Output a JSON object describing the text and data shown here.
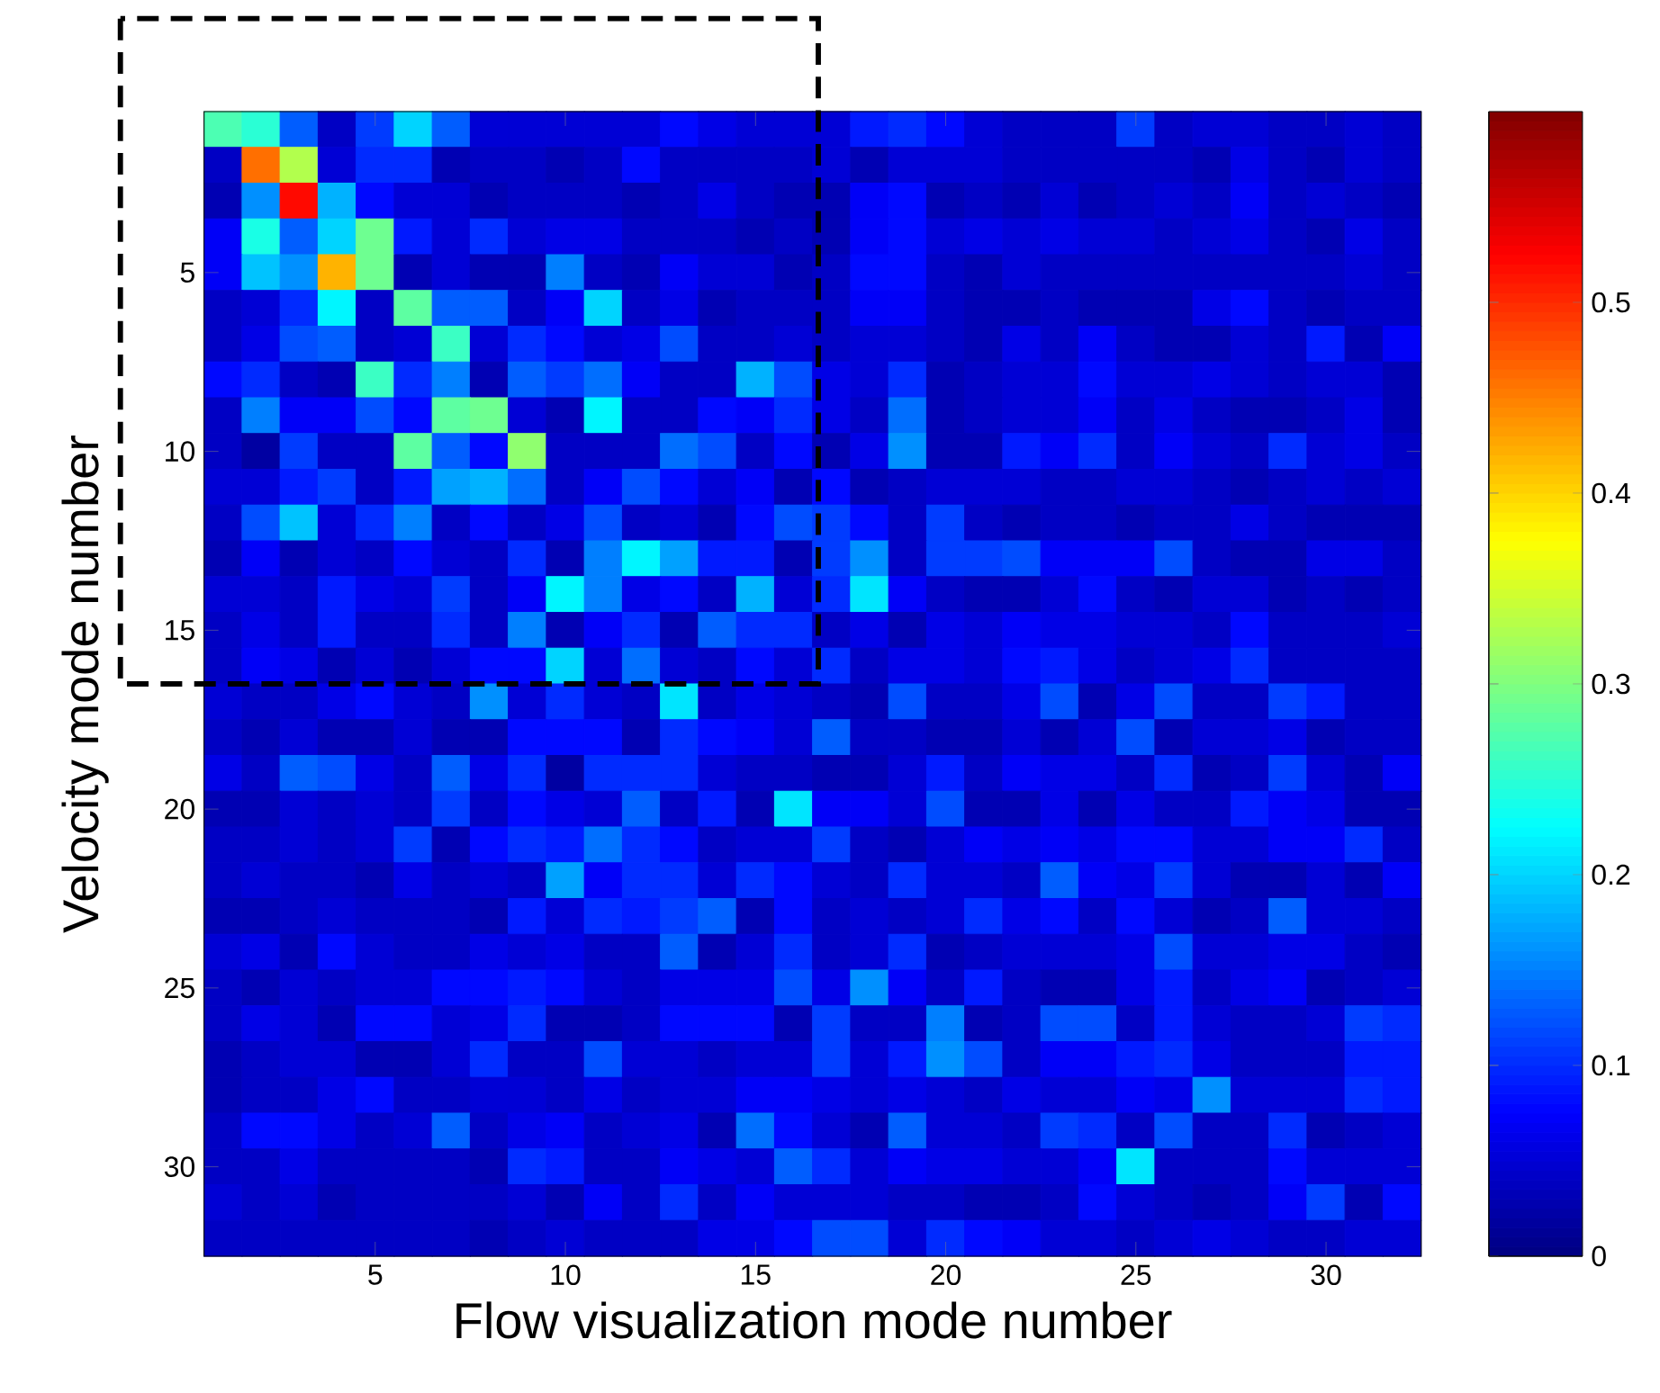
{
  "chart_data": {
    "type": "heatmap",
    "xlabel": "Flow visualization mode number",
    "ylabel": "Velocity mode number",
    "categories": [
      null,
      null,
      null,
      null,
      "5",
      null,
      null,
      null,
      null,
      "10",
      null,
      null,
      null,
      null,
      "15",
      null,
      null,
      null,
      null,
      "20",
      null,
      null,
      null,
      null,
      "25",
      null,
      null,
      null,
      null,
      "30",
      null,
      null
    ],
    "y_categories": [
      null,
      null,
      null,
      null,
      "5",
      null,
      null,
      null,
      null,
      "10",
      null,
      null,
      null,
      null,
      "15",
      null,
      null,
      null,
      null,
      "20",
      null,
      null,
      null,
      null,
      "25",
      null,
      null,
      null,
      null,
      "30",
      null,
      null
    ],
    "clim": [
      0,
      0.6
    ],
    "cticks": [
      0,
      0.1,
      0.2,
      0.3,
      0.4,
      0.5
    ],
    "cells": [
      [
        0.27,
        0.25,
        0.13,
        0.04,
        0.11,
        0.2,
        0.13,
        0.05,
        0.05,
        0.05,
        0.05,
        0.05,
        0.08,
        0.06,
        0.05,
        0.05,
        0.05,
        0.09,
        0.1,
        0.08,
        0.05,
        0.04,
        0.04,
        0.04,
        0.11,
        0.04,
        0.05,
        0.05,
        0.04,
        0.04,
        0.05,
        0.04
      ],
      [
        0.04,
        0.46,
        0.33,
        0.05,
        0.1,
        0.1,
        0.03,
        0.04,
        0.04,
        0.03,
        0.04,
        0.08,
        0.04,
        0.04,
        0.04,
        0.04,
        0.05,
        0.03,
        0.05,
        0.05,
        0.05,
        0.04,
        0.04,
        0.04,
        0.04,
        0.04,
        0.03,
        0.06,
        0.04,
        0.03,
        0.05,
        0.04
      ],
      [
        0.03,
        0.16,
        0.52,
        0.18,
        0.08,
        0.05,
        0.05,
        0.03,
        0.04,
        0.04,
        0.04,
        0.03,
        0.04,
        0.06,
        0.04,
        0.03,
        0.03,
        0.07,
        0.08,
        0.03,
        0.04,
        0.03,
        0.05,
        0.03,
        0.04,
        0.05,
        0.04,
        0.07,
        0.04,
        0.05,
        0.04,
        0.03
      ],
      [
        0.07,
        0.24,
        0.13,
        0.2,
        0.29,
        0.09,
        0.05,
        0.1,
        0.05,
        0.06,
        0.06,
        0.04,
        0.04,
        0.04,
        0.03,
        0.04,
        0.03,
        0.07,
        0.08,
        0.05,
        0.06,
        0.05,
        0.06,
        0.05,
        0.05,
        0.04,
        0.05,
        0.06,
        0.04,
        0.03,
        0.06,
        0.04
      ],
      [
        0.07,
        0.19,
        0.16,
        0.42,
        0.29,
        0.03,
        0.05,
        0.03,
        0.03,
        0.15,
        0.04,
        0.03,
        0.07,
        0.05,
        0.05,
        0.03,
        0.04,
        0.08,
        0.08,
        0.04,
        0.03,
        0.05,
        0.04,
        0.04,
        0.04,
        0.04,
        0.04,
        0.04,
        0.04,
        0.04,
        0.05,
        0.04
      ],
      [
        0.04,
        0.05,
        0.1,
        0.22,
        0.04,
        0.28,
        0.13,
        0.13,
        0.04,
        0.07,
        0.2,
        0.04,
        0.06,
        0.03,
        0.04,
        0.04,
        0.04,
        0.07,
        0.07,
        0.04,
        0.03,
        0.03,
        0.04,
        0.03,
        0.03,
        0.03,
        0.06,
        0.08,
        0.04,
        0.03,
        0.04,
        0.04
      ],
      [
        0.04,
        0.06,
        0.12,
        0.13,
        0.04,
        0.05,
        0.26,
        0.05,
        0.1,
        0.08,
        0.05,
        0.06,
        0.12,
        0.04,
        0.04,
        0.05,
        0.04,
        0.05,
        0.05,
        0.04,
        0.03,
        0.06,
        0.04,
        0.07,
        0.04,
        0.03,
        0.03,
        0.05,
        0.04,
        0.09,
        0.03,
        0.07
      ],
      [
        0.08,
        0.1,
        0.04,
        0.03,
        0.26,
        0.1,
        0.15,
        0.03,
        0.13,
        0.11,
        0.14,
        0.07,
        0.04,
        0.04,
        0.18,
        0.12,
        0.06,
        0.05,
        0.1,
        0.03,
        0.04,
        0.05,
        0.05,
        0.08,
        0.05,
        0.05,
        0.06,
        0.05,
        0.04,
        0.05,
        0.05,
        0.03
      ],
      [
        0.04,
        0.15,
        0.07,
        0.07,
        0.12,
        0.08,
        0.28,
        0.29,
        0.05,
        0.03,
        0.22,
        0.04,
        0.04,
        0.08,
        0.07,
        0.1,
        0.06,
        0.04,
        0.14,
        0.03,
        0.04,
        0.05,
        0.05,
        0.07,
        0.04,
        0.06,
        0.04,
        0.03,
        0.03,
        0.04,
        0.06,
        0.03
      ],
      [
        0.04,
        0.02,
        0.11,
        0.04,
        0.04,
        0.28,
        0.13,
        0.08,
        0.31,
        0.04,
        0.04,
        0.04,
        0.14,
        0.12,
        0.04,
        0.08,
        0.03,
        0.06,
        0.16,
        0.03,
        0.03,
        0.09,
        0.07,
        0.1,
        0.04,
        0.07,
        0.05,
        0.04,
        0.1,
        0.05,
        0.06,
        0.04
      ],
      [
        0.05,
        0.05,
        0.09,
        0.11,
        0.04,
        0.09,
        0.17,
        0.18,
        0.14,
        0.04,
        0.07,
        0.12,
        0.08,
        0.05,
        0.07,
        0.03,
        0.08,
        0.03,
        0.04,
        0.05,
        0.05,
        0.05,
        0.04,
        0.04,
        0.05,
        0.05,
        0.04,
        0.03,
        0.04,
        0.05,
        0.04,
        0.05
      ],
      [
        0.04,
        0.12,
        0.19,
        0.05,
        0.1,
        0.15,
        0.04,
        0.08,
        0.04,
        0.06,
        0.12,
        0.04,
        0.05,
        0.03,
        0.08,
        0.12,
        0.11,
        0.08,
        0.04,
        0.11,
        0.04,
        0.03,
        0.04,
        0.04,
        0.03,
        0.04,
        0.04,
        0.06,
        0.04,
        0.03,
        0.03,
        0.03
      ],
      [
        0.03,
        0.07,
        0.03,
        0.05,
        0.04,
        0.08,
        0.05,
        0.04,
        0.1,
        0.03,
        0.15,
        0.22,
        0.17,
        0.09,
        0.09,
        0.03,
        0.11,
        0.16,
        0.04,
        0.11,
        0.11,
        0.12,
        0.07,
        0.07,
        0.07,
        0.12,
        0.04,
        0.03,
        0.03,
        0.06,
        0.06,
        0.04
      ],
      [
        0.05,
        0.05,
        0.04,
        0.09,
        0.06,
        0.05,
        0.11,
        0.04,
        0.07,
        0.22,
        0.15,
        0.06,
        0.08,
        0.04,
        0.18,
        0.05,
        0.1,
        0.21,
        0.07,
        0.04,
        0.03,
        0.03,
        0.05,
        0.08,
        0.04,
        0.03,
        0.05,
        0.05,
        0.03,
        0.04,
        0.03,
        0.04
      ],
      [
        0.04,
        0.06,
        0.04,
        0.09,
        0.04,
        0.04,
        0.1,
        0.04,
        0.15,
        0.03,
        0.07,
        0.1,
        0.03,
        0.13,
        0.1,
        0.1,
        0.04,
        0.06,
        0.03,
        0.06,
        0.05,
        0.07,
        0.06,
        0.06,
        0.05,
        0.05,
        0.04,
        0.08,
        0.04,
        0.04,
        0.04,
        0.05
      ],
      [
        0.04,
        0.07,
        0.06,
        0.03,
        0.05,
        0.03,
        0.05,
        0.08,
        0.08,
        0.2,
        0.05,
        0.14,
        0.05,
        0.04,
        0.08,
        0.05,
        0.1,
        0.04,
        0.06,
        0.06,
        0.05,
        0.08,
        0.09,
        0.06,
        0.04,
        0.05,
        0.06,
        0.1,
        0.04,
        0.04,
        0.04,
        0.04
      ],
      [
        0.05,
        0.04,
        0.04,
        0.06,
        0.08,
        0.05,
        0.04,
        0.16,
        0.05,
        0.1,
        0.05,
        0.04,
        0.21,
        0.04,
        0.06,
        0.05,
        0.04,
        0.03,
        0.12,
        0.04,
        0.04,
        0.06,
        0.12,
        0.03,
        0.06,
        0.12,
        0.04,
        0.04,
        0.11,
        0.09,
        0.04,
        0.04
      ],
      [
        0.04,
        0.03,
        0.05,
        0.03,
        0.03,
        0.05,
        0.03,
        0.03,
        0.08,
        0.08,
        0.08,
        0.03,
        0.1,
        0.08,
        0.07,
        0.05,
        0.13,
        0.04,
        0.04,
        0.03,
        0.03,
        0.05,
        0.03,
        0.05,
        0.12,
        0.03,
        0.05,
        0.05,
        0.06,
        0.03,
        0.04,
        0.04
      ],
      [
        0.06,
        0.04,
        0.13,
        0.12,
        0.06,
        0.04,
        0.13,
        0.06,
        0.1,
        0.02,
        0.1,
        0.1,
        0.1,
        0.05,
        0.04,
        0.04,
        0.03,
        0.03,
        0.05,
        0.09,
        0.04,
        0.07,
        0.06,
        0.06,
        0.04,
        0.1,
        0.03,
        0.04,
        0.11,
        0.05,
        0.03,
        0.07
      ],
      [
        0.03,
        0.03,
        0.05,
        0.04,
        0.05,
        0.04,
        0.11,
        0.04,
        0.08,
        0.06,
        0.05,
        0.13,
        0.04,
        0.09,
        0.03,
        0.21,
        0.07,
        0.07,
        0.05,
        0.12,
        0.03,
        0.03,
        0.06,
        0.03,
        0.06,
        0.04,
        0.04,
        0.09,
        0.07,
        0.06,
        0.03,
        0.03
      ],
      [
        0.04,
        0.04,
        0.05,
        0.04,
        0.05,
        0.11,
        0.03,
        0.08,
        0.1,
        0.09,
        0.14,
        0.1,
        0.08,
        0.04,
        0.05,
        0.05,
        0.11,
        0.04,
        0.03,
        0.05,
        0.07,
        0.06,
        0.07,
        0.06,
        0.08,
        0.08,
        0.05,
        0.05,
        0.07,
        0.07,
        0.1,
        0.04
      ],
      [
        0.04,
        0.05,
        0.04,
        0.04,
        0.03,
        0.06,
        0.04,
        0.05,
        0.04,
        0.17,
        0.07,
        0.1,
        0.1,
        0.05,
        0.1,
        0.08,
        0.05,
        0.04,
        0.1,
        0.05,
        0.05,
        0.04,
        0.13,
        0.07,
        0.06,
        0.11,
        0.05,
        0.03,
        0.03,
        0.05,
        0.03,
        0.07
      ],
      [
        0.03,
        0.03,
        0.04,
        0.05,
        0.04,
        0.04,
        0.04,
        0.03,
        0.09,
        0.05,
        0.1,
        0.09,
        0.11,
        0.13,
        0.03,
        0.08,
        0.04,
        0.05,
        0.04,
        0.05,
        0.1,
        0.06,
        0.08,
        0.04,
        0.08,
        0.05,
        0.03,
        0.04,
        0.13,
        0.05,
        0.05,
        0.04
      ],
      [
        0.05,
        0.06,
        0.03,
        0.08,
        0.05,
        0.04,
        0.04,
        0.06,
        0.05,
        0.06,
        0.04,
        0.04,
        0.13,
        0.03,
        0.05,
        0.1,
        0.04,
        0.05,
        0.1,
        0.03,
        0.04,
        0.05,
        0.05,
        0.05,
        0.06,
        0.12,
        0.05,
        0.05,
        0.06,
        0.06,
        0.04,
        0.03
      ],
      [
        0.04,
        0.03,
        0.05,
        0.04,
        0.05,
        0.05,
        0.08,
        0.08,
        0.09,
        0.08,
        0.05,
        0.04,
        0.06,
        0.06,
        0.06,
        0.12,
        0.06,
        0.16,
        0.07,
        0.04,
        0.09,
        0.04,
        0.03,
        0.03,
        0.06,
        0.09,
        0.04,
        0.06,
        0.07,
        0.03,
        0.04,
        0.05
      ],
      [
        0.04,
        0.06,
        0.05,
        0.03,
        0.08,
        0.08,
        0.05,
        0.06,
        0.1,
        0.03,
        0.03,
        0.04,
        0.08,
        0.08,
        0.08,
        0.03,
        0.11,
        0.04,
        0.04,
        0.15,
        0.03,
        0.04,
        0.12,
        0.12,
        0.04,
        0.09,
        0.05,
        0.04,
        0.04,
        0.05,
        0.11,
        0.1
      ],
      [
        0.03,
        0.04,
        0.05,
        0.05,
        0.03,
        0.03,
        0.05,
        0.1,
        0.04,
        0.04,
        0.12,
        0.05,
        0.05,
        0.04,
        0.05,
        0.05,
        0.11,
        0.05,
        0.09,
        0.16,
        0.12,
        0.04,
        0.07,
        0.07,
        0.09,
        0.1,
        0.06,
        0.04,
        0.04,
        0.04,
        0.09,
        0.09
      ],
      [
        0.03,
        0.04,
        0.04,
        0.06,
        0.08,
        0.04,
        0.04,
        0.05,
        0.05,
        0.04,
        0.06,
        0.04,
        0.05,
        0.05,
        0.07,
        0.07,
        0.06,
        0.05,
        0.06,
        0.05,
        0.04,
        0.06,
        0.05,
        0.05,
        0.07,
        0.06,
        0.16,
        0.05,
        0.05,
        0.05,
        0.1,
        0.09
      ],
      [
        0.04,
        0.08,
        0.08,
        0.06,
        0.04,
        0.05,
        0.13,
        0.04,
        0.06,
        0.07,
        0.04,
        0.05,
        0.06,
        0.03,
        0.14,
        0.08,
        0.05,
        0.03,
        0.13,
        0.05,
        0.05,
        0.04,
        0.11,
        0.1,
        0.04,
        0.12,
        0.04,
        0.04,
        0.1,
        0.03,
        0.04,
        0.05
      ],
      [
        0.04,
        0.04,
        0.06,
        0.04,
        0.04,
        0.04,
        0.04,
        0.03,
        0.1,
        0.09,
        0.04,
        0.04,
        0.07,
        0.06,
        0.05,
        0.13,
        0.1,
        0.05,
        0.07,
        0.06,
        0.06,
        0.05,
        0.05,
        0.07,
        0.21,
        0.04,
        0.04,
        0.04,
        0.08,
        0.05,
        0.05,
        0.05
      ],
      [
        0.05,
        0.04,
        0.05,
        0.03,
        0.04,
        0.04,
        0.04,
        0.04,
        0.05,
        0.03,
        0.07,
        0.04,
        0.1,
        0.04,
        0.07,
        0.05,
        0.05,
        0.05,
        0.04,
        0.04,
        0.03,
        0.03,
        0.04,
        0.08,
        0.05,
        0.04,
        0.03,
        0.04,
        0.07,
        0.11,
        0.03,
        0.08
      ],
      [
        0.04,
        0.04,
        0.04,
        0.04,
        0.04,
        0.04,
        0.04,
        0.03,
        0.04,
        0.05,
        0.04,
        0.04,
        0.04,
        0.06,
        0.06,
        0.08,
        0.12,
        0.12,
        0.05,
        0.1,
        0.08,
        0.07,
        0.05,
        0.05,
        0.04,
        0.05,
        0.06,
        0.05,
        0.04,
        0.04,
        0.05,
        0.05
      ]
    ]
  }
}
